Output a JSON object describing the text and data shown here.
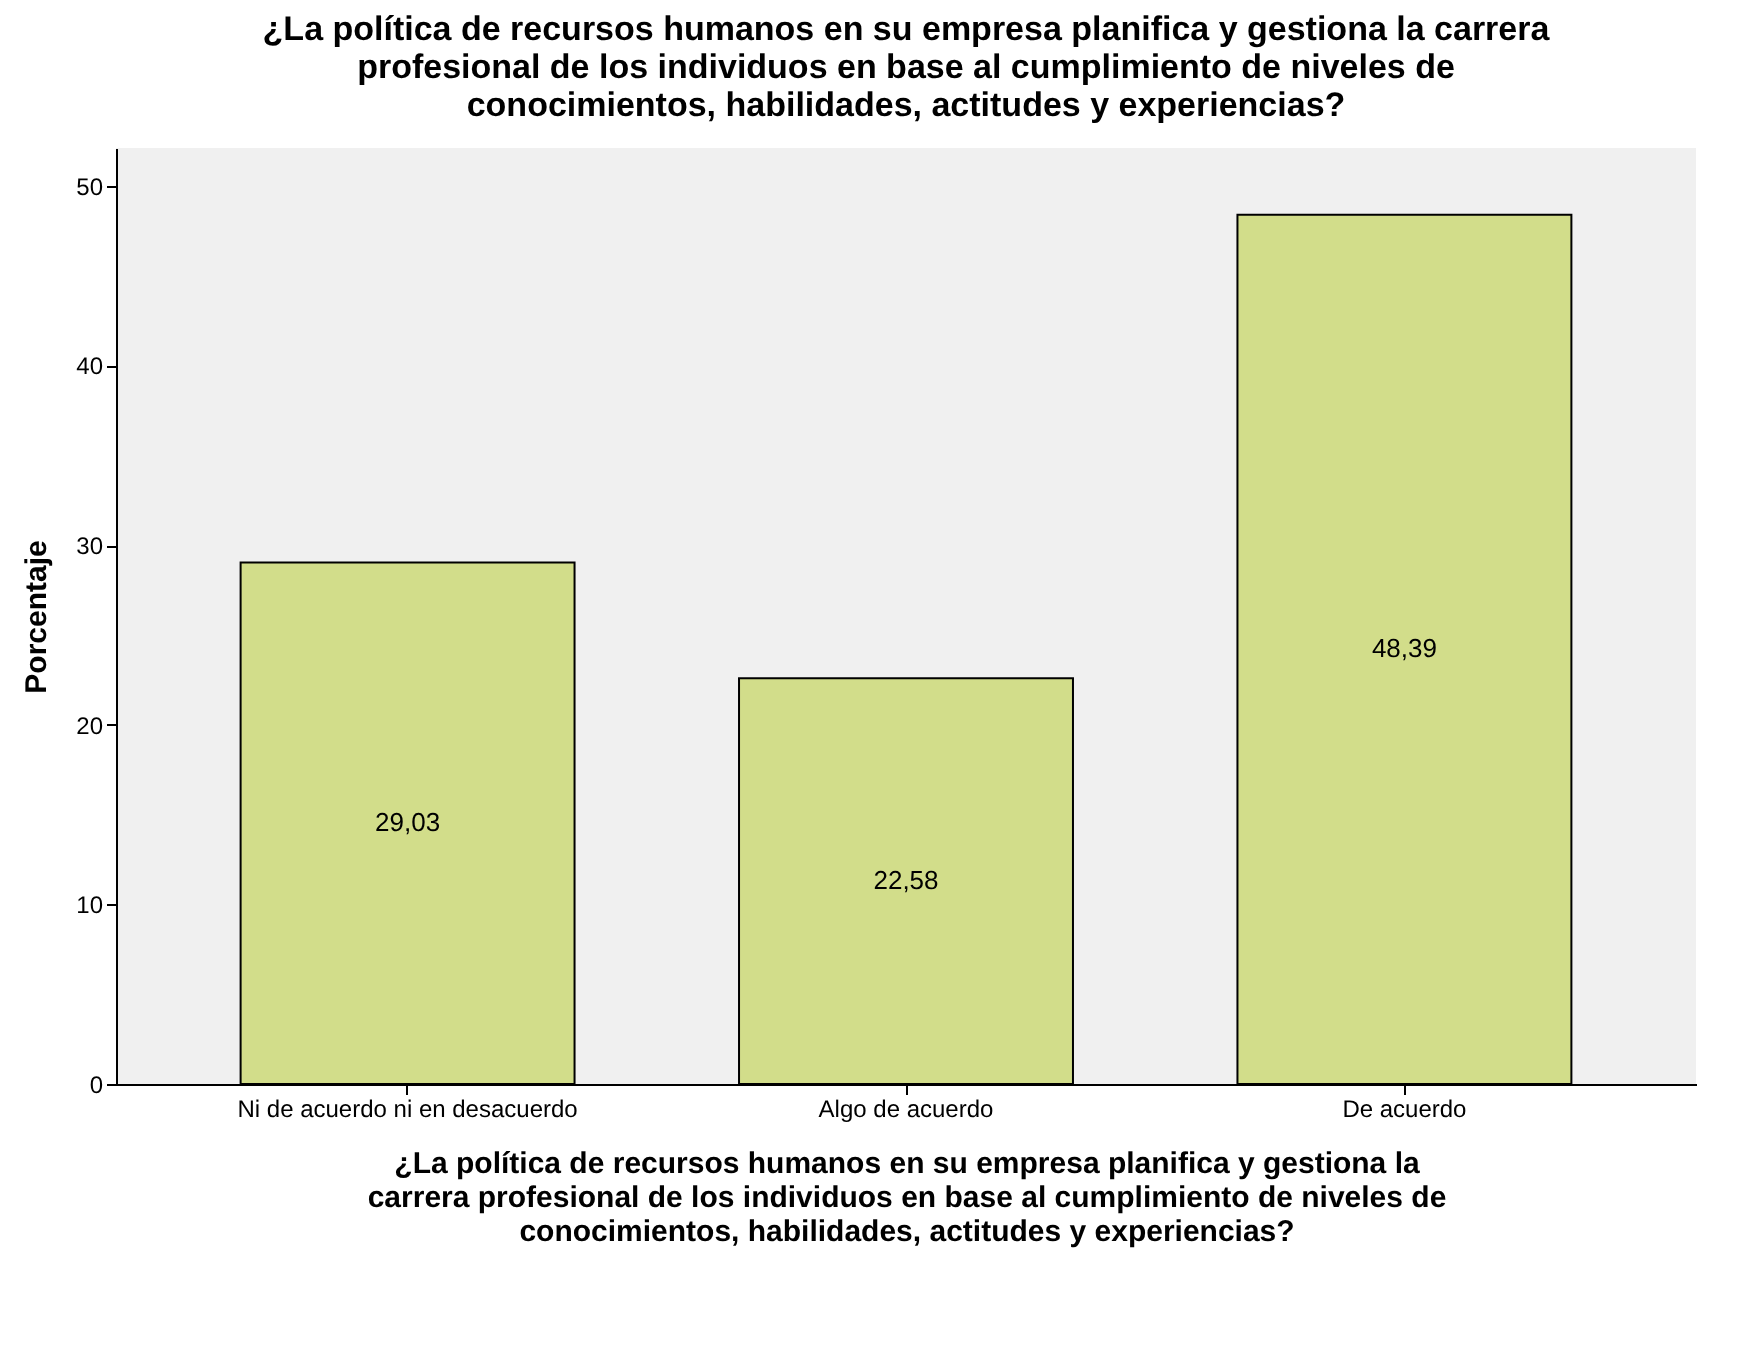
{
  "chart_data": {
    "type": "bar",
    "title": "¿La política de recursos humanos en su empresa planifica y gestiona la carrera profesional de los individuos en base al cumplimiento de niveles de conocimientos, habilidades, actitudes y experiencias?",
    "xlabel": "¿La política de recursos humanos en su empresa planifica y gestiona la carrera profesional de los individuos en base al cumplimiento de niveles de conocimientos, habilidades, actitudes y experiencias?",
    "ylabel": "Porcentaje",
    "categories": [
      "Ni de acuerdo ni en desacuerdo",
      "Algo de acuerdo",
      "De acuerdo"
    ],
    "values": [
      29.03,
      22.58,
      48.39
    ],
    "value_labels": [
      "29,03",
      "22,58",
      "48,39"
    ],
    "color": "#d2dd8a",
    "ylim": [
      0,
      52.1
    ],
    "yticks": [
      0,
      10,
      20,
      30,
      40,
      50
    ],
    "grid": false
  }
}
